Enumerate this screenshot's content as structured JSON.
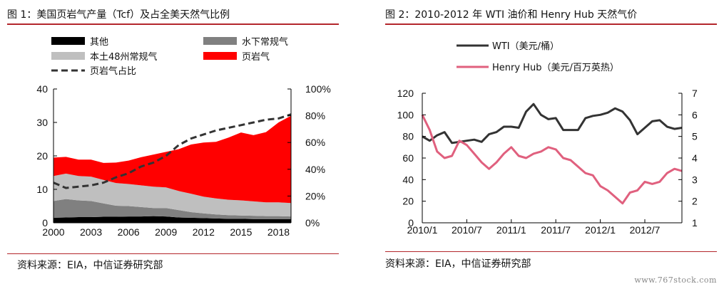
{
  "chart_data": [
    {
      "type": "area",
      "title": "图 1：美国页岩气产量（Tcf）及占全美天然气比例",
      "source": "资料来源：EIA，中信证券研究部",
      "xlim": [
        2000,
        2019
      ],
      "ylim": [
        0,
        40
      ],
      "y2lim": [
        0,
        100
      ],
      "x_ticks": [
        "2000",
        "2003",
        "2006",
        "2009",
        "2012",
        "2015",
        "2018"
      ],
      "y_ticks": [
        "0",
        "10",
        "20",
        "30",
        "40"
      ],
      "y2_ticks": [
        "0%",
        "20%",
        "40%",
        "60%",
        "80%",
        "100%"
      ],
      "grid": false,
      "legend_position": "top-left",
      "x": [
        2000,
        2001,
        2002,
        2003,
        2004,
        2005,
        2006,
        2007,
        2008,
        2009,
        2010,
        2011,
        2012,
        2013,
        2014,
        2015,
        2016,
        2017,
        2018,
        2019
      ],
      "series": [
        {
          "name": "其他",
          "color": "#000000",
          "axis": "left",
          "values": [
            1.5,
            1.6,
            1.7,
            1.7,
            1.8,
            1.8,
            1.9,
            1.9,
            2.0,
            1.9,
            1.6,
            1.5,
            1.4,
            1.3,
            1.2,
            1.2,
            1.1,
            1.1,
            1.1,
            1.1
          ]
        },
        {
          "name": "水下常规气",
          "color": "#808080",
          "axis": "left",
          "values": [
            5.0,
            5.5,
            5.0,
            4.8,
            4.0,
            3.3,
            3.1,
            2.8,
            2.4,
            2.5,
            2.2,
            1.7,
            1.4,
            1.2,
            1.1,
            1.0,
            1.0,
            0.9,
            0.9,
            0.8
          ]
        },
        {
          "name": "本土48州常规气",
          "color": "#bfbfbf",
          "axis": "left",
          "values": [
            7.5,
            7.6,
            7.3,
            7.3,
            7.0,
            6.8,
            6.6,
            6.5,
            6.4,
            6.2,
            5.7,
            5.5,
            5.0,
            4.8,
            4.6,
            4.5,
            4.3,
            4.1,
            4.1,
            4.0
          ]
        },
        {
          "name": "页岩气",
          "color": "#ff0000",
          "axis": "left",
          "values": [
            5.5,
            5.0,
            4.9,
            5.1,
            5.1,
            6.1,
            7.0,
            8.4,
            9.6,
            10.6,
            12.5,
            14.7,
            16.2,
            16.9,
            18.6,
            20.3,
            19.8,
            21.0,
            23.9,
            26.1
          ]
        },
        {
          "name": "页岩气占比",
          "color": "#333333",
          "axis": "right",
          "style": "dashed",
          "values": [
            30,
            26,
            27,
            28,
            30,
            34,
            37,
            42,
            45,
            50,
            58,
            63,
            66,
            69,
            71,
            73,
            75,
            77,
            78,
            81
          ]
        }
      ]
    },
    {
      "type": "line",
      "title": "图 2：2010-2012 年 WTI 油价和 Henry Hub 天然气价",
      "source": "资料来源：EIA，中信证券研究部",
      "ylim": [
        0,
        120
      ],
      "y2lim": [
        1,
        7
      ],
      "x_ticks": [
        "2010/1",
        "2010/7",
        "2011/1",
        "2011/7",
        "2012/1",
        "2012/7"
      ],
      "y_ticks": [
        "0",
        "20",
        "40",
        "60",
        "80",
        "100",
        "120"
      ],
      "y2_ticks": [
        "1",
        "2",
        "3",
        "4",
        "5",
        "6",
        "7"
      ],
      "grid": false,
      "legend_position": "top",
      "x": [
        "2010/1",
        "2010/2",
        "2010/3",
        "2010/4",
        "2010/5",
        "2010/6",
        "2010/7",
        "2010/8",
        "2010/9",
        "2010/10",
        "2010/11",
        "2010/12",
        "2011/1",
        "2011/2",
        "2011/3",
        "2011/4",
        "2011/5",
        "2011/6",
        "2011/7",
        "2011/8",
        "2011/9",
        "2011/10",
        "2011/11",
        "2011/12",
        "2012/1",
        "2012/2",
        "2012/3",
        "2012/4",
        "2012/5",
        "2012/6",
        "2012/7",
        "2012/8",
        "2012/9",
        "2012/10",
        "2012/11",
        "2012/12"
      ],
      "series": [
        {
          "name": "WTI（美元/桶）",
          "color": "#333333",
          "axis": "left",
          "values": [
            80,
            76,
            81,
            84,
            74,
            75,
            76,
            77,
            75,
            82,
            84,
            89,
            89,
            88,
            103,
            110,
            100,
            96,
            97,
            86,
            86,
            86,
            97,
            99,
            100,
            102,
            106,
            103,
            95,
            82,
            88,
            94,
            95,
            89,
            87,
            88
          ]
        },
        {
          "name": "Henry Hub（美元/百万英热）",
          "color": "#e0607e",
          "axis": "right",
          "values": [
            6.0,
            5.3,
            4.3,
            4.0,
            4.1,
            4.8,
            4.6,
            4.2,
            3.8,
            3.5,
            3.8,
            4.2,
            4.5,
            4.1,
            4.0,
            4.2,
            4.3,
            4.5,
            4.4,
            4.0,
            3.9,
            3.6,
            3.3,
            3.2,
            2.7,
            2.5,
            2.2,
            1.9,
            2.4,
            2.5,
            2.9,
            2.8,
            2.9,
            3.3,
            3.5,
            3.4
          ]
        }
      ]
    }
  ],
  "watermark": "www.767stock.com"
}
